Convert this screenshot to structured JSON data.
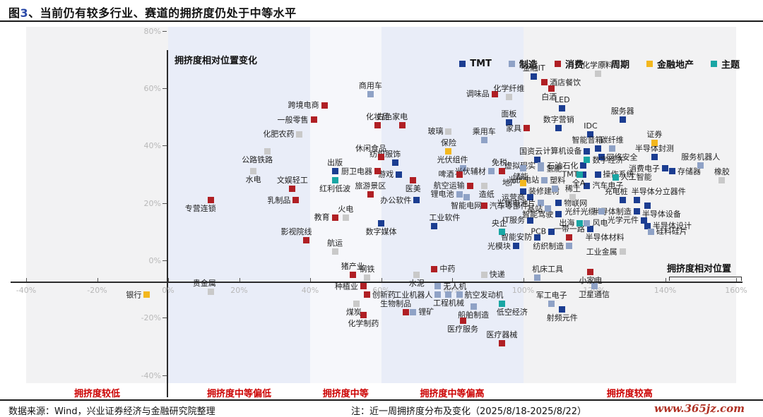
{
  "header": {
    "title_prefix": "图",
    "title_number": "3",
    "title_suffix": "、当前仍有较多行业、赛道的拥挤度仍处于中等水平"
  },
  "legend": {
    "items": [
      {
        "label": "TMT",
        "color": "#1b3d91"
      },
      {
        "label": "制造",
        "color": "#8fa2c6"
      },
      {
        "label": "消费",
        "color": "#b01f24"
      },
      {
        "label": "周期",
        "color": "#c9c9c9"
      },
      {
        "label": "金融地产",
        "color": "#f3b71e"
      },
      {
        "label": "主题",
        "color": "#19a6a4"
      }
    ]
  },
  "chart_data": {
    "type": "scatter",
    "xlabel": "拥挤度相对位置",
    "ylabel": "拥挤度相对位置变化",
    "xlim": [
      -40,
      160
    ],
    "ylim": [
      -40,
      80
    ],
    "x_ticks": [
      {
        "v": -40,
        "label": "-40%"
      },
      {
        "v": -20,
        "label": "-20%"
      },
      {
        "v": 0,
        "label": "0%"
      },
      {
        "v": 20,
        "label": "20%"
      },
      {
        "v": 40,
        "label": "40%"
      },
      {
        "v": 60,
        "label": "60%"
      },
      {
        "v": 80,
        "label": "80%"
      },
      {
        "v": 100,
        "label": "100%"
      },
      {
        "v": 120,
        "label": "120%"
      },
      {
        "v": 140,
        "label": "140%"
      },
      {
        "v": 160,
        "label": "160%"
      }
    ],
    "y_ticks": [
      {
        "v": 80,
        "label": "80%"
      },
      {
        "v": 60,
        "label": "60%"
      },
      {
        "v": 40,
        "label": "40%"
      },
      {
        "v": 20,
        "label": "20%"
      },
      {
        "v": 0,
        "label": "0%"
      },
      {
        "v": -20,
        "label": "-20%"
      },
      {
        "v": -40,
        "label": "-40%"
      }
    ],
    "zones": [
      {
        "label": "拥挤度较低",
        "x0": -40,
        "x1": 0,
        "color": "#f2f2f3"
      },
      {
        "label": "拥挤度中等偏低",
        "x0": 0,
        "x1": 40,
        "color": "#e9edf8"
      },
      {
        "label": "拥挤度中等",
        "x0": 40,
        "x1": 60,
        "color": "#f6f7fb"
      },
      {
        "label": "拥挤度中等偏高",
        "x0": 60,
        "x1": 100,
        "color": "#e9edf8"
      },
      {
        "label": "拥挤度较高",
        "x0": 100,
        "x1": 160,
        "color": "#f2f2f3"
      }
    ],
    "zone_label_color": "#cc0000",
    "point_format": [
      "label",
      "x_pct",
      "y_pct",
      "label_position"
    ],
    "series": [
      {
        "name": "TMT",
        "color": "#1b3d91",
        "points": [
          [
            "金融IT",
            103,
            64,
            "t"
          ],
          [
            "LED",
            111,
            53,
            "t"
          ],
          [
            "服务器",
            128,
            49,
            "t"
          ],
          [
            "IDC",
            119,
            44,
            "t"
          ],
          [
            "数字营销",
            110,
            46,
            "t"
          ],
          [
            "面板",
            96,
            48,
            "t"
          ],
          [
            "智能音箱",
            121,
            39,
            "tl"
          ],
          [
            "计算机设备",
            118,
            38,
            "l"
          ],
          [
            "网络安全",
            122,
            36,
            "r"
          ],
          [
            "半导体封测",
            137,
            36,
            "t"
          ],
          [
            "消费电子",
            140,
            32,
            "l"
          ],
          [
            "存储器",
            142,
            31,
            "r"
          ],
          [
            "操作系统",
            121,
            30,
            "r"
          ],
          [
            "TMT",
            117,
            30,
            "l"
          ],
          [
            "石油石化",
            117,
            33,
            "l"
          ],
          [
            "国资云",
            104,
            35,
            "tl"
          ],
          [
            "出版",
            47,
            31,
            "t"
          ],
          [
            "游戏",
            65,
            30,
            "l"
          ],
          [
            "纺织服饰",
            64,
            34,
            "tl"
          ],
          [
            "办公软件",
            70,
            21,
            "l"
          ],
          [
            "数字媒体",
            60,
            13,
            "b"
          ],
          [
            "工业软件",
            75,
            12,
            "tr"
          ],
          [
            "装修建材",
            100,
            24,
            "r"
          ],
          [
            "运营商",
            102,
            22,
            "l"
          ],
          [
            "汽车电子",
            118,
            26,
            "r"
          ],
          [
            "充电桩",
            128,
            21,
            "tl"
          ],
          [
            "半导体分立器件",
            132,
            21,
            "tr"
          ],
          [
            "半导体制造",
            132,
            17,
            "l"
          ],
          [
            "半导体设备",
            135,
            19,
            "br"
          ],
          [
            "光学元件",
            134,
            14,
            "l"
          ],
          [
            "半导体设计",
            135,
            12,
            "r"
          ],
          [
            "半导体材料",
            119,
            11,
            "br"
          ],
          [
            "IT服务",
            102,
            14,
            "l"
          ],
          [
            "PCB",
            108,
            10,
            "l"
          ],
          [
            "智能驾驶",
            110,
            16,
            "l"
          ],
          [
            "物联网",
            110,
            20,
            "r"
          ],
          [
            "智能安防",
            104,
            8,
            "l"
          ],
          [
            "光模块",
            98,
            5,
            "l"
          ],
          [
            "射频元件",
            111,
            -17,
            "b"
          ]
        ]
      },
      {
        "name": "制造",
        "color": "#8fa2c6",
        "points": [
          [
            "商用车",
            57,
            58,
            "t"
          ],
          [
            "乘用车",
            89,
            42,
            "t"
          ],
          [
            "碳纤维",
            125,
            39,
            "t"
          ],
          [
            "服务机器人",
            150,
            33,
            "t"
          ],
          [
            "虚拟现实",
            105,
            33,
            "l"
          ],
          [
            "储能",
            100,
            32,
            "bl"
          ],
          [
            "氢能",
            105,
            32,
            "r"
          ],
          [
            "光伏电站",
            106,
            28,
            "l"
          ],
          [
            "塑料",
            109,
            25,
            "tr"
          ],
          [
            "光伏组件",
            83,
            32,
            "tl"
          ],
          [
            "光伏辅材",
            91,
            31,
            "l"
          ],
          [
            "锂电池",
            82,
            23,
            "l"
          ],
          [
            "智能电网",
            84,
            22,
            "b"
          ],
          [
            "光伏电池片",
            105,
            20,
            "l"
          ],
          [
            "基站",
            107,
            18,
            "l"
          ],
          [
            "光纤光缆",
            122,
            17,
            "l"
          ],
          [
            "风电",
            118,
            13,
            "r"
          ],
          [
            "纺织制造",
            113,
            5,
            "l"
          ],
          [
            "硅料硅片",
            136,
            10,
            "r"
          ],
          [
            "无人机",
            76,
            -9,
            "r"
          ],
          [
            "工业机器人",
            76,
            -12,
            "l"
          ],
          [
            "航空发动机",
            82,
            -12,
            "r"
          ],
          [
            "工程机械",
            79,
            -12,
            "b"
          ],
          [
            "船舶制造",
            86,
            -16,
            "b"
          ],
          [
            "机床工具",
            104,
            -6,
            "tr"
          ],
          [
            "卫星通信",
            120,
            -9,
            "b"
          ],
          [
            "军工电子",
            108,
            -15,
            "t"
          ],
          [
            "锂矿",
            69,
            -18,
            "r"
          ]
        ]
      },
      {
        "name": "消费",
        "color": "#b01f24",
        "points": [
          [
            "酒店餐饮",
            106,
            62,
            "r"
          ],
          [
            "白酒",
            108,
            60,
            "bl"
          ],
          [
            "调味品",
            92,
            58,
            "l"
          ],
          [
            "跨境电商",
            44,
            54,
            "l"
          ],
          [
            "一般零售",
            41,
            49,
            "l"
          ],
          [
            "化妆品",
            59,
            47,
            "t"
          ],
          [
            "白色家电",
            66,
            47,
            "tl"
          ],
          [
            "家具",
            101,
            46,
            "l"
          ],
          [
            "休闲食品",
            60,
            36,
            "tl"
          ],
          [
            "厨卫电器",
            59,
            31,
            "l"
          ],
          [
            "旅游景区",
            57,
            23,
            "t"
          ],
          [
            "医美",
            69,
            28,
            "b"
          ],
          [
            "乳制品",
            36,
            21,
            "l"
          ],
          [
            "文娱轻工",
            35,
            25,
            "t"
          ],
          [
            "专营连锁",
            12,
            21,
            "bl"
          ],
          [
            "啤酒",
            82,
            30,
            "l"
          ],
          [
            "航空运输",
            85,
            26,
            "l"
          ],
          [
            "免税",
            94,
            31,
            "tl"
          ],
          [
            "教育",
            47,
            15,
            "l"
          ],
          [
            "影视院线",
            39,
            7,
            "tl"
          ],
          [
            "汽车零部件",
            89,
            19,
            "r"
          ],
          [
            "一带一路",
            113,
            8,
            "t"
          ],
          [
            "中药",
            75,
            -3,
            "r"
          ],
          [
            "猪产业",
            52,
            -5,
            "t"
          ],
          [
            "种植业",
            55,
            -9,
            "l"
          ],
          [
            "创新药",
            56,
            -12,
            "r"
          ],
          [
            "生物制品",
            67,
            -18,
            "tl"
          ],
          [
            "化学制药",
            55,
            -19,
            "b"
          ],
          [
            "医疗服务",
            83,
            -21,
            "b"
          ],
          [
            "医疗器械",
            94,
            -29,
            "t"
          ],
          [
            "小家电",
            119,
            -4,
            "b"
          ]
        ]
      },
      {
        "name": "周期",
        "color": "#c9c9c9",
        "points": [
          [
            "化学原料",
            121,
            65,
            "t"
          ],
          [
            "化学纤维",
            96,
            57,
            "t"
          ],
          [
            "玻璃",
            79,
            45,
            "l"
          ],
          [
            "公路铁路",
            28,
            38,
            "bl"
          ],
          [
            "化肥农药",
            37,
            44,
            "l"
          ],
          [
            "水电",
            24,
            31,
            "b"
          ],
          [
            "火电",
            50,
            15,
            "t"
          ],
          [
            "航运",
            47,
            3,
            "t"
          ],
          [
            "造纸",
            89,
            26,
            "br"
          ],
          [
            "稀土",
            114,
            22,
            "t"
          ],
          [
            "橡胶",
            156,
            28,
            "t"
          ],
          [
            "工业金属",
            128,
            3,
            "l"
          ],
          [
            "钢铁",
            56,
            -6,
            "t"
          ],
          [
            "水泥",
            70,
            -5,
            "b"
          ],
          [
            "快递",
            89,
            -5,
            "r"
          ],
          [
            "煤炭",
            53,
            -15,
            "bl"
          ],
          [
            "贵金属",
            12,
            -11,
            "tl"
          ]
        ]
      },
      {
        "name": "金融地产",
        "color": "#f3b71e",
        "points": [
          [
            "证券",
            137,
            41,
            "t"
          ],
          [
            "保险",
            79,
            38,
            "t"
          ],
          [
            "地产",
            100,
            27,
            "l"
          ],
          [
            "银行",
            -6,
            -12,
            "l"
          ]
        ]
      },
      {
        "name": "主题",
        "color": "#19a6a4",
        "points": [
          [
            "数字经济",
            118,
            35,
            "r"
          ],
          [
            "全A",
            116,
            30,
            "bl"
          ],
          [
            "人工智能",
            126,
            29,
            "r"
          ],
          [
            "红利低波",
            47,
            28,
            "b"
          ],
          [
            "央企",
            94,
            10,
            "tl"
          ],
          [
            "出海",
            116,
            13,
            "l"
          ],
          [
            "低空经济",
            94,
            -15,
            "br"
          ]
        ]
      }
    ]
  },
  "footer": {
    "source": "数据来源：Wind，兴业证券经济与金融研究院整理",
    "note": "注：近一周拥挤度分布及变化（2025/8/18-2025/8/22）",
    "site": "www.365jz.com"
  }
}
